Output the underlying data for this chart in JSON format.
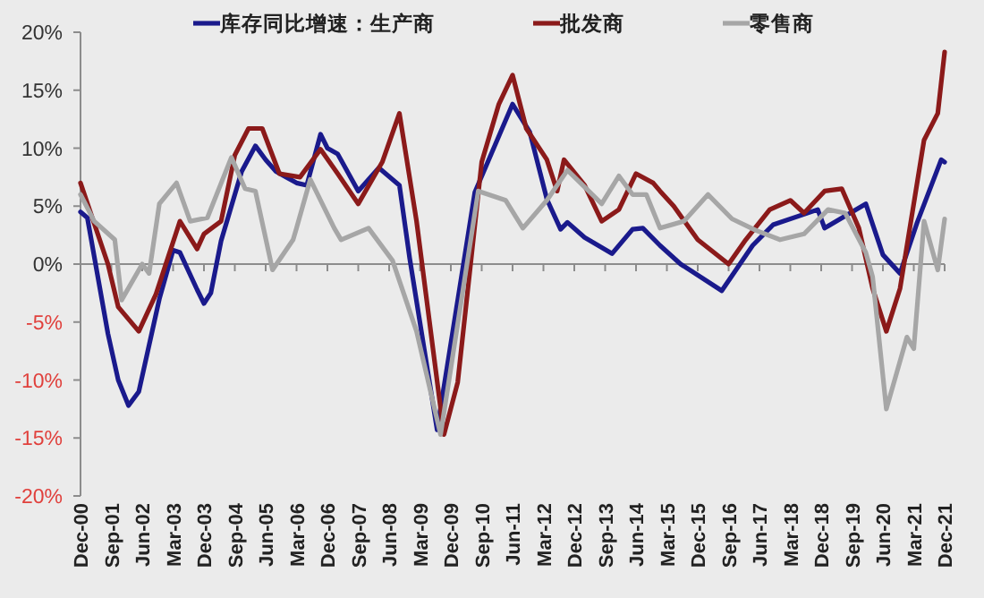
{
  "chart_data": {
    "type": "line",
    "legend": "top",
    "marker": "none",
    "line_style": "solid",
    "xlim": [
      "2000-12",
      "2021-12"
    ],
    "xticks": [
      {
        "value": "2000-12",
        "label": "Dec-00"
      },
      {
        "value": "2001-09",
        "label": "Sep-01"
      },
      {
        "value": "2002-06",
        "label": "Jun-02"
      },
      {
        "value": "2003-03",
        "label": "Mar-03"
      },
      {
        "value": "2003-12",
        "label": "Dec-03"
      },
      {
        "value": "2004-09",
        "label": "Sep-04"
      },
      {
        "value": "2005-06",
        "label": "Jun-05"
      },
      {
        "value": "2006-03",
        "label": "Mar-06"
      },
      {
        "value": "2006-12",
        "label": "Dec-06"
      },
      {
        "value": "2007-09",
        "label": "Sep-07"
      },
      {
        "value": "2008-06",
        "label": "Jun-08"
      },
      {
        "value": "2009-03",
        "label": "Mar-09"
      },
      {
        "value": "2009-12",
        "label": "Dec-09"
      },
      {
        "value": "2010-09",
        "label": "Sep-10"
      },
      {
        "value": "2011-06",
        "label": "Jun-11"
      },
      {
        "value": "2012-03",
        "label": "Mar-12"
      },
      {
        "value": "2012-12",
        "label": "Dec-12"
      },
      {
        "value": "2013-09",
        "label": "Sep-13"
      },
      {
        "value": "2014-06",
        "label": "Jun-14"
      },
      {
        "value": "2015-03",
        "label": "Mar-15"
      },
      {
        "value": "2015-12",
        "label": "Dec-15"
      },
      {
        "value": "2016-09",
        "label": "Sep-16"
      },
      {
        "value": "2017-06",
        "label": "Jun-17"
      },
      {
        "value": "2018-03",
        "label": "Mar-18"
      },
      {
        "value": "2018-12",
        "label": "Dec-18"
      },
      {
        "value": "2019-09",
        "label": "Sep-19"
      },
      {
        "value": "2020-06",
        "label": "Jun-20"
      },
      {
        "value": "2021-03",
        "label": "Mar-21"
      },
      {
        "value": "2021-12",
        "label": "Dec-21"
      }
    ],
    "ylim": [
      -20,
      20
    ],
    "yticks": [
      {
        "value": -20,
        "label": "-20%"
      },
      {
        "value": -15,
        "label": "-15%"
      },
      {
        "value": -10,
        "label": "-10%"
      },
      {
        "value": -5,
        "label": "-5%"
      },
      {
        "value": 0,
        "label": "0%"
      },
      {
        "value": 5,
        "label": "5%"
      },
      {
        "value": 10,
        "label": "10%"
      },
      {
        "value": 15,
        "label": "15%"
      },
      {
        "value": 20,
        "label": "20%"
      }
    ],
    "series": [
      {
        "name": "库存同比增速：生产商",
        "color": "#1a1a8c",
        "x": [
          "2000-12",
          "2001-02",
          "2001-05",
          "2001-08",
          "2001-11",
          "2002-02",
          "2002-05",
          "2002-08",
          "2002-11",
          "2003-03",
          "2003-05",
          "2003-10",
          "2003-12",
          "2004-02",
          "2004-05",
          "2004-08",
          "2004-11",
          "2005-03",
          "2005-06",
          "2005-09",
          "2005-12",
          "2006-03",
          "2006-06",
          "2006-10",
          "2006-12",
          "2007-03",
          "2007-09",
          "2008-03",
          "2008-09",
          "2008-12",
          "2009-08",
          "2010-07",
          "2011-06",
          "2011-11",
          "2012-04",
          "2012-08",
          "2012-10",
          "2013-03",
          "2013-11",
          "2014-05",
          "2014-08",
          "2015-01",
          "2015-07",
          "2016-07",
          "2017-04",
          "2017-10",
          "2018-11",
          "2019-01",
          "2020-01",
          "2020-06",
          "2020-11",
          "2021-04",
          "2021-11",
          "2021-12"
        ],
        "values": [
          4.5,
          4,
          -1,
          -6,
          -10,
          -12.2,
          -11,
          -7,
          -3,
          1.2,
          1,
          -2.2,
          -3.4,
          -2.5,
          2,
          5,
          8,
          10.2,
          9,
          8,
          7.5,
          7,
          6.8,
          11.2,
          10,
          9.5,
          6.3,
          8.3,
          6.8,
          0.5,
          -14.3,
          6.2,
          13.8,
          11.4,
          5.6,
          3,
          3.6,
          2.3,
          0.9,
          3,
          3.1,
          1.6,
          0,
          -2.3,
          1.6,
          3.4,
          4.7,
          3.1,
          5.2,
          0.8,
          -0.8,
          3.6,
          9,
          8.8
        ]
      },
      {
        "name": "批发商",
        "color": "#8b1a1a",
        "x": [
          "2000-12",
          "2001-08",
          "2001-11",
          "2002-05",
          "2002-10",
          "2003-05",
          "2003-10",
          "2003-12",
          "2004-05",
          "2004-09",
          "2005-01",
          "2005-05",
          "2005-10",
          "2006-04",
          "2006-10",
          "2007-03",
          "2007-09",
          "2008-04",
          "2008-09",
          "2009-02",
          "2009-10",
          "2010-02",
          "2010-09",
          "2011-02",
          "2011-06",
          "2011-10",
          "2012-04",
          "2012-07",
          "2012-09",
          "2013-03",
          "2013-08",
          "2014-01",
          "2014-06",
          "2014-11",
          "2015-01",
          "2015-05",
          "2015-12",
          "2016-09",
          "2017-02",
          "2017-09",
          "2018-03",
          "2018-07",
          "2019-01",
          "2019-06",
          "2019-11",
          "2020-03",
          "2020-07",
          "2020-11",
          "2021-06",
          "2021-10",
          "2021-12"
        ],
        "values": [
          7,
          0,
          -3.7,
          -5.8,
          -2.6,
          3.7,
          1.3,
          2.6,
          3.7,
          9.4,
          11.7,
          11.7,
          7.8,
          7.5,
          9.9,
          7.8,
          5.2,
          8.8,
          13,
          3.7,
          -14.7,
          -10.2,
          8.8,
          13.8,
          16.3,
          11.7,
          9,
          6.3,
          9,
          6.8,
          3.7,
          4.7,
          7.8,
          7,
          6.3,
          5,
          2.1,
          0,
          2.1,
          4.7,
          5.5,
          4.4,
          6.3,
          6.5,
          3.1,
          -2.1,
          -5.8,
          -2.1,
          10.7,
          13,
          18.3
        ]
      },
      {
        "name": "零售商",
        "color": "#a6a6a6",
        "x": [
          "2000-12",
          "2001-04",
          "2001-10",
          "2001-12",
          "2002-06",
          "2002-08",
          "2002-11",
          "2003-04",
          "2003-08",
          "2004-01",
          "2004-08",
          "2004-12",
          "2005-03",
          "2005-08",
          "2006-02",
          "2006-03",
          "2006-07",
          "2007-02",
          "2007-04",
          "2007-12",
          "2008-07",
          "2009-02",
          "2009-09",
          "2010-08",
          "2011-04",
          "2011-09",
          "2012-04",
          "2012-10",
          "2013-08",
          "2014-01",
          "2014-05",
          "2014-09",
          "2015-01",
          "2015-08",
          "2016-03",
          "2016-10",
          "2017-05",
          "2017-12",
          "2018-07",
          "2019-02",
          "2019-07",
          "2020-01",
          "2020-03",
          "2020-07",
          "2021-01",
          "2021-03",
          "2021-06",
          "2021-10",
          "2021-12"
        ],
        "values": [
          6,
          3.7,
          2.1,
          -3.1,
          0,
          -0.8,
          5.2,
          7,
          3.7,
          4,
          9.2,
          6.5,
          6.3,
          -0.5,
          2.1,
          3.1,
          7.3,
          3.1,
          2.1,
          3.1,
          0.3,
          -5.8,
          -14.7,
          6.3,
          5.5,
          3.1,
          5.5,
          8.1,
          5.2,
          7.6,
          6,
          6,
          3.1,
          3.7,
          6,
          3.9,
          2.9,
          2.1,
          2.6,
          4.7,
          4.4,
          1,
          -1.1,
          -12.5,
          -6.3,
          -7.3,
          3.7,
          -0.5,
          3.9
        ]
      }
    ]
  }
}
